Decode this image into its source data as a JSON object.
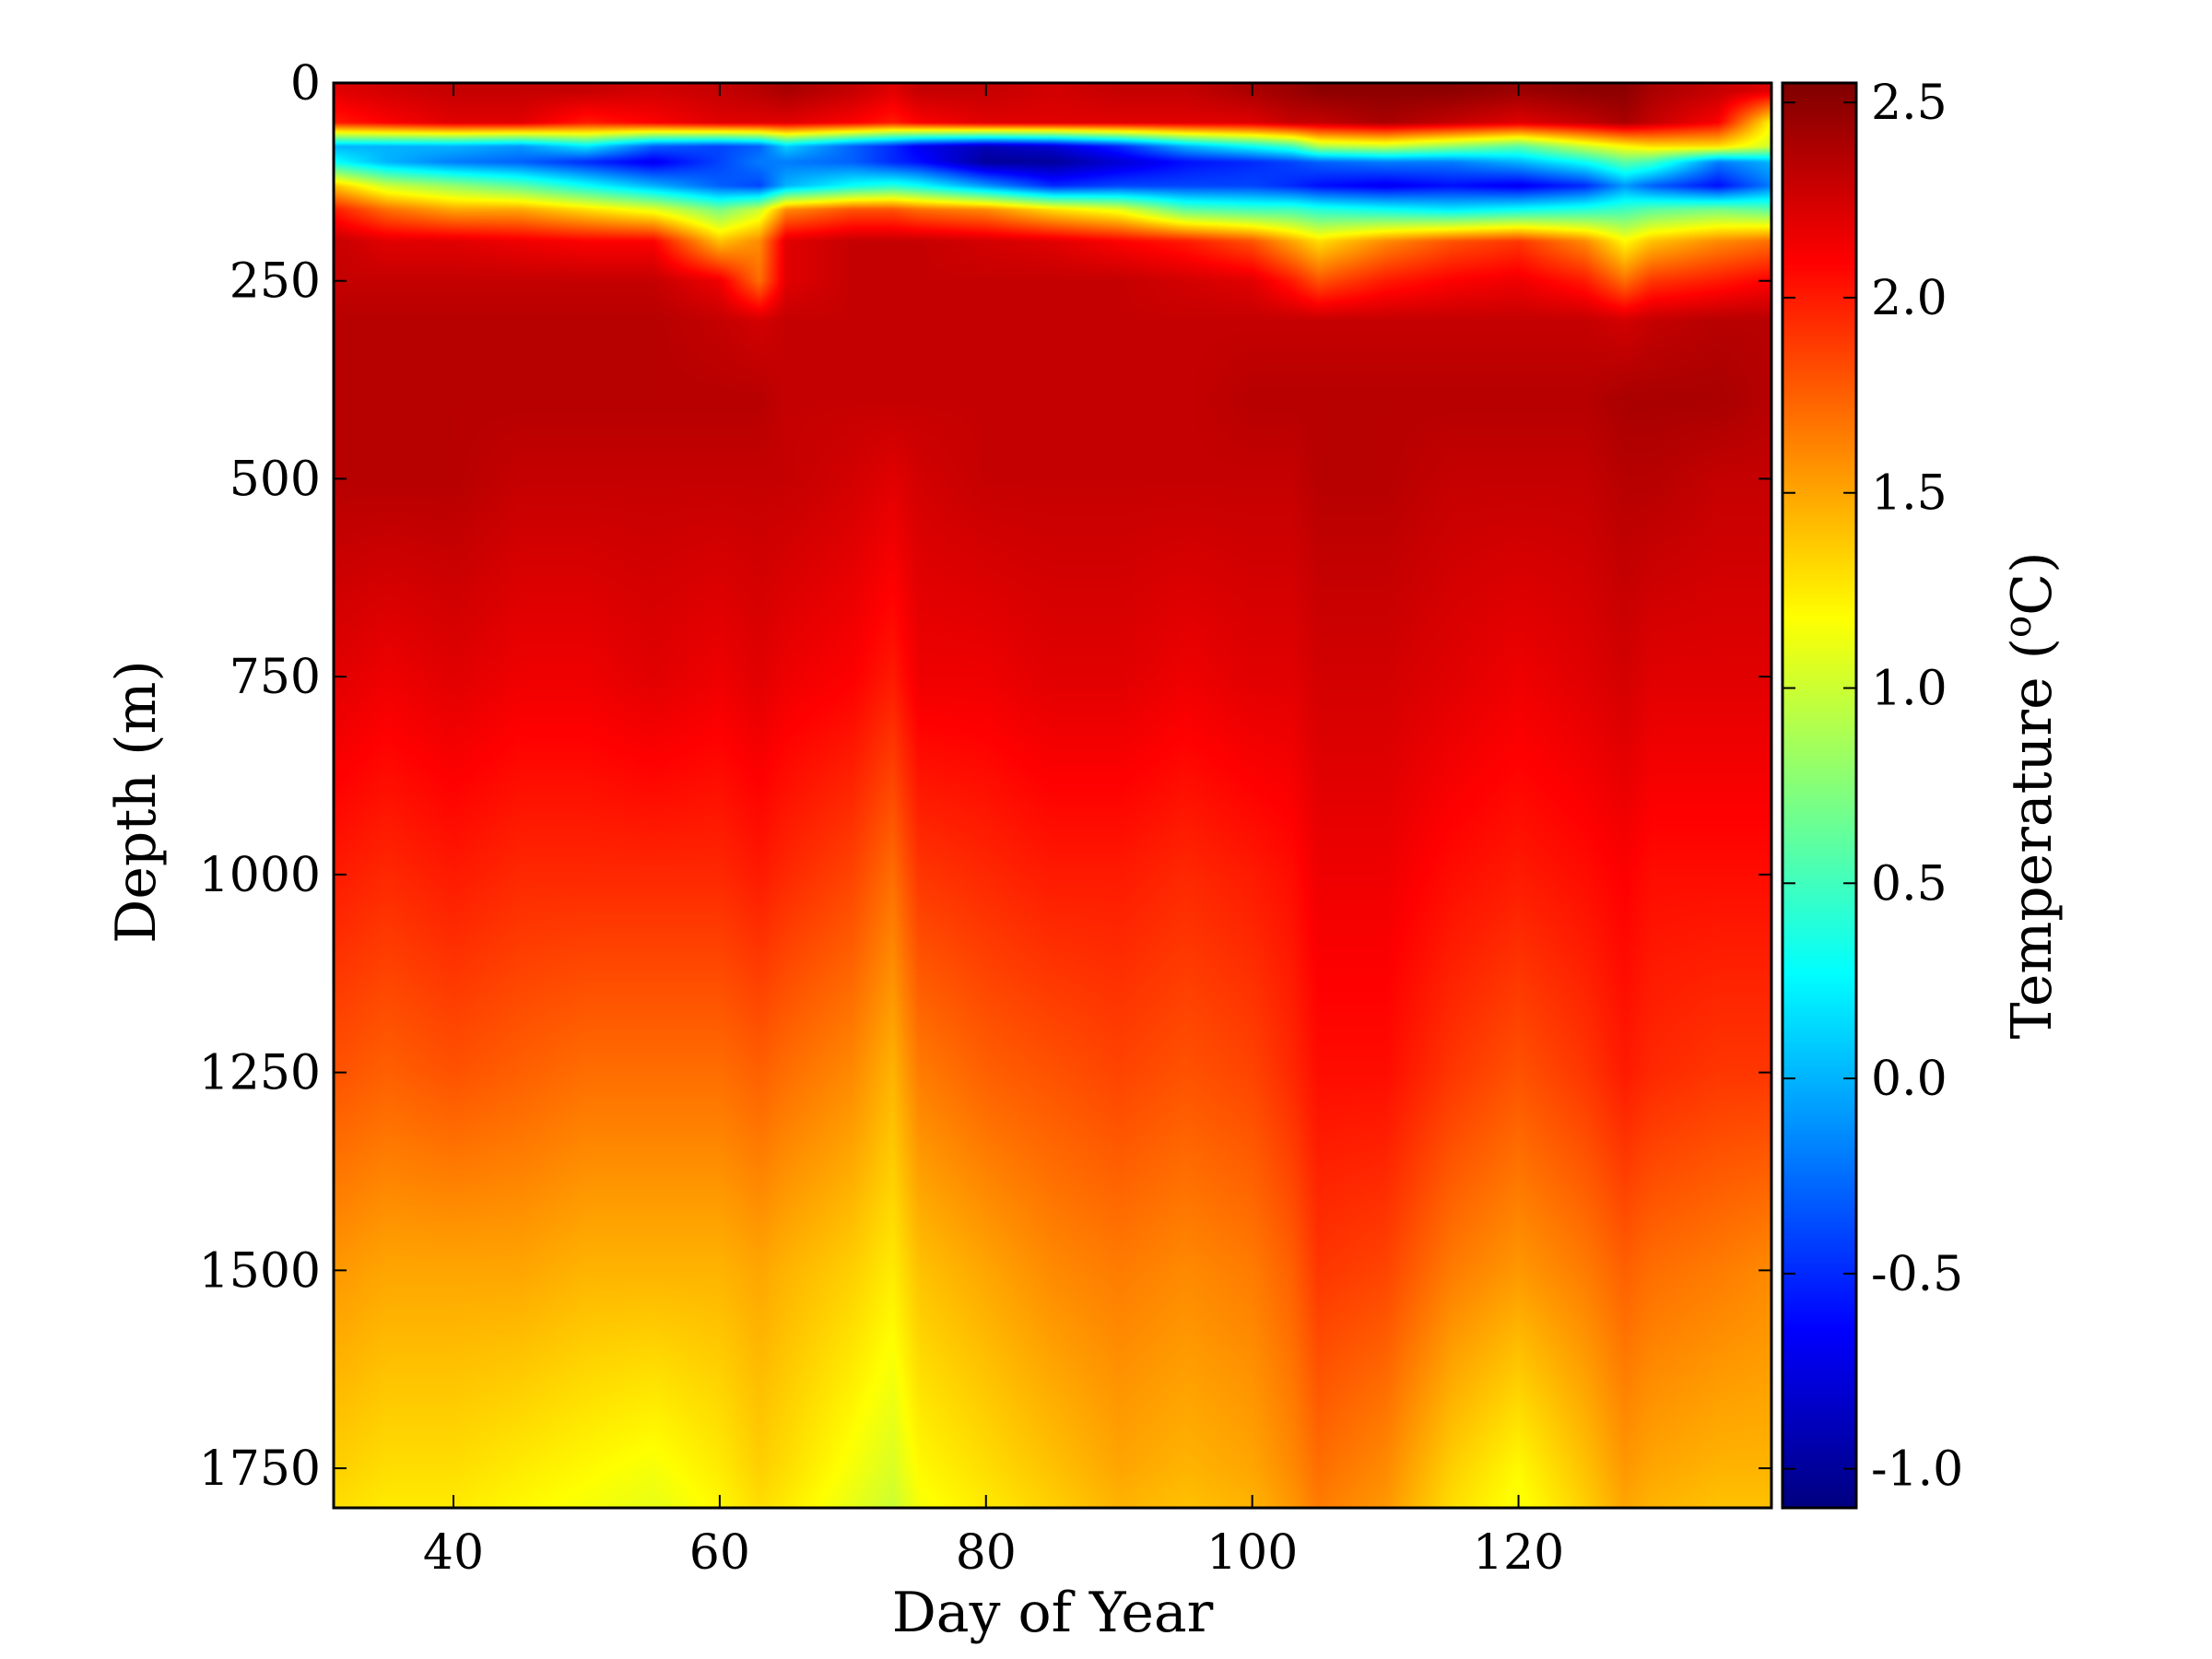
{
  "chart_data": {
    "type": "heatmap",
    "title": "",
    "xlabel": "Day of Year",
    "ylabel": "Depth (m)",
    "colorbar_label_base": "Temperature (",
    "colorbar_label_sup": "o",
    "colorbar_label_tail": "C)",
    "colormap": "jet",
    "xlim": [
      31,
      139
    ],
    "ylim": [
      1800,
      0
    ],
    "clim": [
      -1.1,
      2.55
    ],
    "xticks": [
      40,
      60,
      80,
      100,
      120
    ],
    "xtick_labels": [
      "40",
      "60",
      "80",
      "100",
      "120"
    ],
    "yticks": [
      0,
      250,
      500,
      750,
      1000,
      1250,
      1500,
      1750
    ],
    "ytick_labels": [
      "0",
      "250",
      "500",
      "750",
      "1000",
      "1250",
      "1500",
      "1750"
    ],
    "cticks": [
      2.5,
      2.0,
      1.5,
      1.0,
      0.5,
      0.0,
      -0.5,
      -1.0
    ],
    "ctick_labels": [
      "2.5",
      "2.0",
      "1.5",
      "1.0",
      "0.5",
      "0.0",
      "-0.5",
      "-1.0"
    ],
    "days": [
      31,
      35,
      40,
      45,
      50,
      55,
      60,
      63,
      65,
      70,
      73,
      75,
      80,
      85,
      90,
      95,
      100,
      103,
      105,
      110,
      115,
      120,
      125,
      128,
      130,
      135,
      139
    ],
    "depths": [
      10,
      50,
      80,
      100,
      130,
      160,
      200,
      250,
      300,
      400,
      500,
      750,
      1000,
      1250,
      1500,
      1750,
      1800
    ],
    "temperature": [
      [
        2.2,
        2.25,
        2.3,
        2.3,
        2.3,
        2.25,
        2.3,
        2.35,
        2.4,
        2.3,
        2.2,
        2.3,
        2.3,
        2.25,
        2.3,
        2.3,
        2.4,
        2.45,
        2.5,
        2.5,
        2.5,
        2.45,
        2.5,
        2.5,
        2.4,
        2.3,
        2.2
      ],
      [
        2.0,
        2.1,
        2.2,
        2.2,
        2.0,
        2.1,
        2.2,
        2.2,
        2.2,
        2.1,
        2.0,
        2.1,
        2.2,
        2.2,
        2.2,
        2.2,
        2.2,
        2.3,
        2.3,
        2.4,
        2.3,
        2.2,
        2.3,
        2.4,
        2.3,
        2.1,
        1.2
      ],
      [
        0.0,
        0.0,
        0.0,
        -0.1,
        0.2,
        -0.3,
        -0.4,
        -0.3,
        0.1,
        -0.3,
        -0.5,
        -0.7,
        -0.9,
        -0.8,
        -0.5,
        0.0,
        0.3,
        0.5,
        0.9,
        1.0,
        0.8,
        0.6,
        1.0,
        1.2,
        1.3,
        1.3,
        1.0
      ],
      [
        0.3,
        0.0,
        -0.2,
        -0.3,
        -0.5,
        -0.7,
        -0.4,
        -0.2,
        -0.2,
        -0.3,
        -0.5,
        -0.6,
        -1.0,
        -1.0,
        -0.8,
        -0.6,
        -0.5,
        -0.4,
        -0.3,
        -0.2,
        -0.2,
        0.0,
        0.3,
        0.6,
        0.5,
        -0.2,
        0.0
      ],
      [
        1.4,
        1.0,
        0.8,
        0.6,
        0.3,
        0.0,
        -0.3,
        -0.4,
        0.0,
        0.3,
        0.4,
        0.3,
        -0.1,
        -0.5,
        -0.4,
        -0.4,
        -0.4,
        -0.5,
        -0.6,
        -0.7,
        -0.6,
        -0.7,
        -0.5,
        -0.1,
        -0.3,
        -0.6,
        -0.2
      ],
      [
        2.0,
        1.7,
        1.5,
        1.5,
        1.3,
        1.1,
        0.7,
        1.0,
        1.6,
        1.8,
        1.8,
        1.7,
        1.6,
        1.3,
        1.1,
        0.6,
        0.5,
        0.5,
        0.4,
        0.3,
        0.2,
        0.3,
        0.4,
        0.5,
        0.6,
        0.7,
        0.6
      ],
      [
        2.3,
        2.2,
        2.2,
        2.15,
        2.1,
        2.1,
        1.4,
        1.6,
        2.2,
        2.3,
        2.3,
        2.3,
        2.25,
        2.2,
        2.1,
        2.0,
        1.8,
        1.5,
        1.3,
        1.6,
        1.8,
        1.9,
        1.6,
        1.2,
        1.4,
        1.6,
        1.7
      ],
      [
        2.3,
        2.3,
        2.3,
        2.3,
        2.3,
        2.3,
        2.15,
        1.7,
        2.2,
        2.3,
        2.3,
        2.3,
        2.3,
        2.3,
        2.3,
        2.25,
        2.2,
        2.0,
        1.8,
        2.0,
        2.1,
        2.15,
        2.0,
        1.7,
        1.9,
        2.0,
        2.1
      ],
      [
        2.35,
        2.35,
        2.35,
        2.35,
        2.35,
        2.35,
        2.3,
        2.25,
        2.3,
        2.3,
        2.3,
        2.3,
        2.3,
        2.3,
        2.3,
        2.3,
        2.3,
        2.3,
        2.3,
        2.3,
        2.3,
        2.3,
        2.3,
        2.25,
        2.3,
        2.35,
        2.35
      ],
      [
        2.35,
        2.35,
        2.35,
        2.35,
        2.35,
        2.35,
        2.35,
        2.35,
        2.3,
        2.3,
        2.3,
        2.3,
        2.3,
        2.3,
        2.3,
        2.3,
        2.35,
        2.35,
        2.35,
        2.35,
        2.35,
        2.35,
        2.35,
        2.4,
        2.4,
        2.4,
        2.35
      ],
      [
        2.35,
        2.35,
        2.35,
        2.3,
        2.3,
        2.3,
        2.3,
        2.3,
        2.3,
        2.25,
        2.2,
        2.25,
        2.3,
        2.3,
        2.3,
        2.3,
        2.3,
        2.3,
        2.35,
        2.35,
        2.3,
        2.3,
        2.3,
        2.35,
        2.35,
        2.3,
        2.3
      ],
      [
        2.2,
        2.15,
        2.2,
        2.15,
        2.15,
        2.2,
        2.15,
        2.2,
        2.15,
        2.1,
        2.0,
        2.15,
        2.15,
        2.2,
        2.2,
        2.15,
        2.2,
        2.2,
        2.25,
        2.25,
        2.2,
        2.15,
        2.2,
        2.25,
        2.2,
        2.2,
        2.2
      ],
      [
        2.0,
        1.95,
        2.0,
        1.95,
        1.95,
        1.95,
        1.95,
        2.0,
        1.95,
        1.85,
        1.7,
        1.9,
        1.95,
        2.0,
        2.0,
        1.95,
        2.0,
        2.05,
        2.15,
        2.15,
        2.05,
        2.0,
        2.05,
        2.1,
        2.05,
        2.05,
        2.05
      ],
      [
        1.8,
        1.75,
        1.8,
        1.75,
        1.7,
        1.7,
        1.7,
        1.75,
        1.7,
        1.6,
        1.45,
        1.65,
        1.75,
        1.8,
        1.85,
        1.8,
        1.85,
        1.95,
        2.05,
        2.05,
        1.9,
        1.8,
        1.9,
        2.0,
        1.95,
        1.9,
        1.9
      ],
      [
        1.55,
        1.5,
        1.5,
        1.5,
        1.45,
        1.45,
        1.45,
        1.5,
        1.45,
        1.35,
        1.25,
        1.4,
        1.5,
        1.6,
        1.65,
        1.6,
        1.65,
        1.75,
        1.9,
        1.85,
        1.65,
        1.55,
        1.65,
        1.75,
        1.7,
        1.65,
        1.6
      ],
      [
        1.35,
        1.3,
        1.3,
        1.25,
        1.2,
        1.15,
        1.25,
        1.35,
        1.3,
        1.15,
        1.05,
        1.2,
        1.3,
        1.4,
        1.5,
        1.45,
        1.5,
        1.6,
        1.7,
        1.6,
        1.35,
        1.2,
        1.4,
        1.55,
        1.5,
        1.45,
        1.45
      ],
      [
        1.3,
        1.25,
        1.25,
        1.2,
        1.15,
        1.1,
        1.2,
        1.3,
        1.25,
        1.1,
        1.0,
        1.15,
        1.25,
        1.35,
        1.45,
        1.4,
        1.45,
        1.55,
        1.65,
        1.55,
        1.3,
        1.15,
        1.35,
        1.5,
        1.45,
        1.4,
        1.4
      ]
    ]
  }
}
